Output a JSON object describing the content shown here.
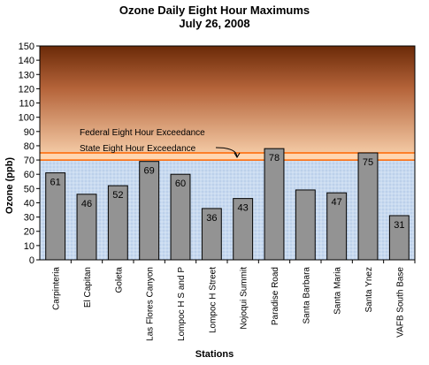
{
  "chart_data": {
    "type": "bar",
    "title": "Ozone Daily Eight Hour Maximums",
    "subtitle": "July 26, 2008",
    "xlabel": "Stations",
    "ylabel": "Ozone (ppb)",
    "ylim": [
      0,
      150
    ],
    "yticks": [
      0,
      10,
      20,
      30,
      40,
      50,
      60,
      70,
      80,
      90,
      100,
      110,
      120,
      130,
      140,
      150
    ],
    "categories": [
      "Carpinteria",
      "El Capitan",
      "Goleta",
      "Las Flores Canyon",
      "Lompoc H S and P",
      "Lompoc H Street",
      "Nojoqui Summit",
      "Paradise Road",
      "Santa Barbara",
      "Santa Maria",
      "Santa Ynez",
      "VAFB South Base"
    ],
    "values": [
      61,
      46,
      52,
      69,
      60,
      36,
      43,
      78,
      49,
      47,
      75,
      31
    ],
    "data_labels": [
      "61",
      "46",
      "52",
      "69",
      "60",
      "36",
      "43",
      "78",
      "",
      "47",
      "75",
      "31"
    ],
    "thresholds": [
      {
        "label": "Federal Eight Hour Exceedance",
        "value": 75
      },
      {
        "label": "State Eight Hour Exceedance",
        "value": 70
      }
    ],
    "colors": {
      "bar": "#939393",
      "threshold_band": "#ffd6b0",
      "threshold_line": "#ff6600",
      "safe_zone": "#c8daf0",
      "exceed_zone_top": "#6b2a08",
      "exceed_zone_bottom": "#f3c9a4"
    },
    "grid": false,
    "legend": "none"
  }
}
